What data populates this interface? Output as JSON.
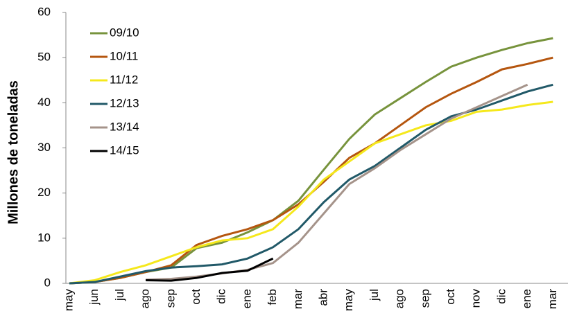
{
  "chart_data": {
    "type": "line",
    "y_label": "Millones de toneladas",
    "categories": [
      "may",
      "jun",
      "jul",
      "ago",
      "sep",
      "oct",
      "dic",
      "ene",
      "feb",
      "mar",
      "abr",
      "may",
      "jul",
      "ago",
      "sep",
      "oct",
      "nov",
      "dic",
      "ene",
      "mar"
    ],
    "ylim": [
      0,
      60
    ],
    "yticks": [
      0,
      10,
      20,
      30,
      40,
      50,
      60
    ],
    "grid": false,
    "legend": "top-left",
    "series": [
      {
        "name": "09/10",
        "color": "#77933c",
        "values": [
          0,
          0.3,
          1.2,
          2.5,
          3.5,
          7.8,
          9,
          11.3,
          14,
          18.3,
          25.2,
          32,
          37.4,
          41,
          44.6,
          48,
          50,
          51.7,
          53.2,
          54.3
        ]
      },
      {
        "name": "10/11",
        "color": "#b5560f",
        "values": [
          0,
          0.3,
          1.2,
          2.5,
          4,
          8.5,
          10.5,
          12,
          14,
          17.5,
          22.5,
          27.8,
          31,
          35,
          39,
          42,
          44.6,
          47.4,
          48.6,
          50
        ]
      },
      {
        "name": "11/12",
        "color": "#f5e81c",
        "values": [
          0,
          0.7,
          2.5,
          4,
          6,
          8,
          9.5,
          10,
          12,
          17,
          23,
          27,
          31,
          33,
          35,
          36,
          38,
          38.5,
          39.5,
          40.2
        ]
      },
      {
        "name": "12/13",
        "color": "#215968",
        "values": [
          0,
          0.3,
          1.5,
          2.7,
          3.5,
          3.8,
          4.2,
          5.5,
          8,
          12,
          18,
          23,
          26,
          30,
          34,
          37,
          38.5,
          40.5,
          42.5,
          44
        ]
      },
      {
        "name": "13/14",
        "color": "#a5938a",
        "values": [
          null,
          null,
          null,
          0.8,
          1,
          1.5,
          2.2,
          3,
          4.5,
          9,
          15.5,
          22,
          25.5,
          29.5,
          33,
          36.5,
          39,
          41.5,
          44,
          null
        ]
      },
      {
        "name": "14/15",
        "color": "#000000",
        "values": [
          null,
          null,
          null,
          0.7,
          0.6,
          1.2,
          2.3,
          2.8,
          5.5,
          null,
          null,
          null,
          null,
          null,
          null,
          null,
          null,
          null,
          null,
          null
        ]
      }
    ]
  }
}
